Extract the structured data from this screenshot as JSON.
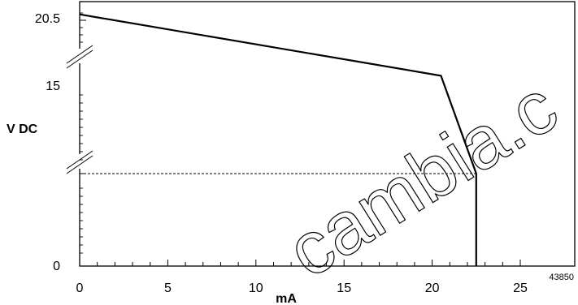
{
  "chart_data": {
    "type": "line",
    "xlabel": "mA",
    "ylabel": "V DC",
    "x_ticks": [
      0,
      5,
      10,
      15,
      20,
      25
    ],
    "y_ticks": [
      0,
      15,
      20.5
    ],
    "xlim": [
      0,
      25
    ],
    "ylim": [
      0,
      20.5
    ],
    "y_axis_breaks": true,
    "series": [
      {
        "points": [
          [
            0,
            21
          ],
          [
            20.5,
            15.8
          ],
          [
            22.5,
            15
          ],
          [
            22.5,
            0
          ]
        ]
      }
    ],
    "reference_lines": [
      {
        "style": "dashed",
        "from": [
          0,
          15
        ],
        "to": [
          22.5,
          15
        ]
      }
    ],
    "grid": false,
    "legend": "none",
    "figure_number": "43850",
    "watermark": "cambia.c"
  }
}
